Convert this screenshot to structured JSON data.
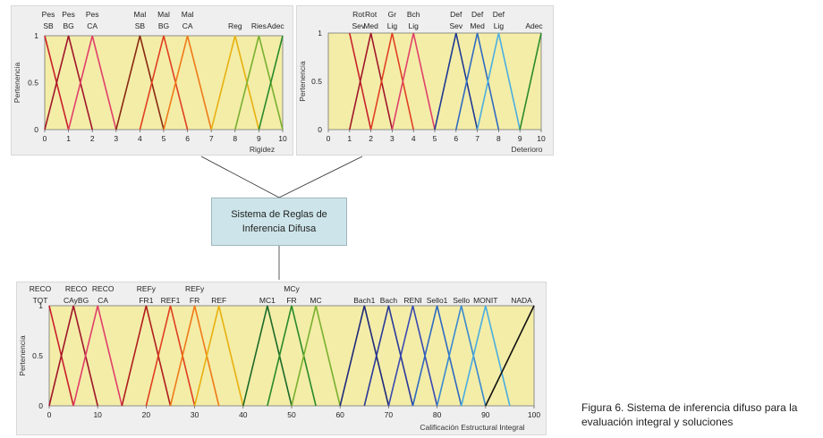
{
  "ylabel": "Pertenencia",
  "rules_box": "Sistema de Reglas de\nInferencia Difusa",
  "caption": "Figura 6. Sistema de inferencia difuso para la evaluación integral y soluciones",
  "chart_data": [
    {
      "type": "line",
      "id": "rigidez",
      "xlabel": "Rigidez",
      "ylabel": "Pertenencia",
      "xlim": [
        0,
        10
      ],
      "ylim": [
        0,
        1
      ],
      "xticks": [
        0,
        1,
        2,
        3,
        4,
        5,
        6,
        7,
        8,
        9,
        10
      ],
      "yticks": [
        0,
        0.5,
        1
      ],
      "series": [
        {
          "name": "Pes SB",
          "points": [
            [
              0,
              1
            ],
            [
              1,
              0
            ]
          ],
          "color": "#c8202b"
        },
        {
          "name": "Pes BG",
          "points": [
            [
              0,
              0
            ],
            [
              1,
              1
            ],
            [
              2,
              0
            ]
          ],
          "color": "#a0162a"
        },
        {
          "name": "Pes CA",
          "points": [
            [
              1,
              0
            ],
            [
              2,
              1
            ],
            [
              3,
              0
            ]
          ],
          "color": "#e0406a"
        },
        {
          "name": "Mal SB",
          "points": [
            [
              3,
              0
            ],
            [
              4,
              1
            ],
            [
              5,
              0
            ]
          ],
          "color": "#8a2a10"
        },
        {
          "name": "Mal BG",
          "points": [
            [
              4,
              0
            ],
            [
              5,
              1
            ],
            [
              6,
              0
            ]
          ],
          "color": "#e04020"
        },
        {
          "name": "Mal CA",
          "points": [
            [
              5,
              0
            ],
            [
              6,
              1
            ],
            [
              7,
              0
            ]
          ],
          "color": "#f07a18"
        },
        {
          "name": "Reg",
          "points": [
            [
              7,
              0
            ],
            [
              8,
              1
            ],
            [
              9,
              0
            ]
          ],
          "color": "#e8b010"
        },
        {
          "name": "Ries",
          "points": [
            [
              8,
              0
            ],
            [
              9,
              1
            ],
            [
              10,
              0
            ]
          ],
          "color": "#7ab030"
        },
        {
          "name": "Adec",
          "points": [
            [
              9,
              0
            ],
            [
              10,
              1
            ]
          ],
          "color": "#2a8a2a"
        }
      ]
    },
    {
      "type": "line",
      "id": "deterioro",
      "xlabel": "Deterioro",
      "ylabel": "Pertenencia",
      "xlim": [
        0,
        10
      ],
      "ylim": [
        0,
        1
      ],
      "xticks": [
        0,
        1,
        2,
        3,
        4,
        5,
        6,
        7,
        8,
        9,
        10
      ],
      "yticks": [
        0,
        0.5,
        1
      ],
      "series": [
        {
          "name": "Rot Sev",
          "points": [
            [
              1,
              1
            ],
            [
              2,
              0
            ]
          ],
          "color": "#c8202b"
        },
        {
          "name": "Rot Med",
          "points": [
            [
              1,
              0
            ],
            [
              2,
              1
            ],
            [
              3,
              0
            ]
          ],
          "color": "#a0162a"
        },
        {
          "name": "Gr Lig",
          "points": [
            [
              2,
              0
            ],
            [
              3,
              1
            ],
            [
              4,
              0
            ]
          ],
          "color": "#e04020"
        },
        {
          "name": "Bch Lig",
          "points": [
            [
              3,
              0
            ],
            [
              4,
              1
            ],
            [
              5,
              0
            ]
          ],
          "color": "#e0406a"
        },
        {
          "name": "Def Sev",
          "points": [
            [
              5,
              0
            ],
            [
              6,
              1
            ],
            [
              7,
              0
            ]
          ],
          "color": "#1f3a93"
        },
        {
          "name": "Def Med",
          "points": [
            [
              6,
              0
            ],
            [
              7,
              1
            ],
            [
              8,
              0
            ]
          ],
          "color": "#2f6ac0"
        },
        {
          "name": "Def Lig",
          "points": [
            [
              7,
              0
            ],
            [
              8,
              1
            ],
            [
              9,
              0
            ]
          ],
          "color": "#4aaee0"
        },
        {
          "name": "Adec",
          "points": [
            [
              9,
              0
            ],
            [
              10,
              1
            ]
          ],
          "color": "#2a8a2a"
        }
      ]
    },
    {
      "type": "line",
      "id": "calificacion",
      "xlabel": "Calificación Estructural Integral",
      "ylabel": "Pertenencia",
      "xlim": [
        0,
        100
      ],
      "ylim": [
        0,
        1
      ],
      "xticks": [
        0,
        10,
        20,
        30,
        40,
        50,
        60,
        70,
        80,
        90,
        100
      ],
      "yticks": [
        0,
        0.5,
        1
      ],
      "series": [
        {
          "name": "RECO TOT",
          "points": [
            [
              0,
              1
            ],
            [
              5,
              0
            ]
          ],
          "color": "#c8202b"
        },
        {
          "name": "RECO CAyBG",
          "points": [
            [
              0,
              0
            ],
            [
              5,
              1
            ],
            [
              10,
              0
            ]
          ],
          "color": "#a0162a"
        },
        {
          "name": "RECO CA",
          "points": [
            [
              5,
              0
            ],
            [
              10,
              1
            ],
            [
              15,
              0
            ]
          ],
          "color": "#e0406a"
        },
        {
          "name": "REFy FR1",
          "points": [
            [
              15,
              0
            ],
            [
              20,
              1
            ],
            [
              25,
              0
            ]
          ],
          "color": "#b01e1e"
        },
        {
          "name": "REF1",
          "points": [
            [
              20,
              0
            ],
            [
              25,
              1
            ],
            [
              30,
              0
            ]
          ],
          "color": "#e04020"
        },
        {
          "name": "REFy FR",
          "points": [
            [
              25,
              0
            ],
            [
              30,
              1
            ],
            [
              35,
              0
            ]
          ],
          "color": "#f07a18"
        },
        {
          "name": "REF",
          "points": [
            [
              30,
              0
            ],
            [
              35,
              1
            ],
            [
              40,
              0
            ]
          ],
          "color": "#e8b010"
        },
        {
          "name": "MC1",
          "points": [
            [
              40,
              0
            ],
            [
              45,
              1
            ],
            [
              50,
              0
            ]
          ],
          "color": "#1e6a2a"
        },
        {
          "name": "MCy FR",
          "points": [
            [
              45,
              0
            ],
            [
              50,
              1
            ],
            [
              55,
              0
            ]
          ],
          "color": "#2a8a2a"
        },
        {
          "name": "MC",
          "points": [
            [
              50,
              0
            ],
            [
              55,
              1
            ],
            [
              60,
              0
            ]
          ],
          "color": "#7ab030"
        },
        {
          "name": "Bach1",
          "points": [
            [
              60,
              0
            ],
            [
              65,
              1
            ],
            [
              70,
              0
            ]
          ],
          "color": "#1f2a7a"
        },
        {
          "name": "Bach",
          "points": [
            [
              65,
              0
            ],
            [
              70,
              1
            ],
            [
              75,
              0
            ]
          ],
          "color": "#2a3a9a"
        },
        {
          "name": "RENI",
          "points": [
            [
              70,
              0
            ],
            [
              75,
              1
            ],
            [
              80,
              0
            ]
          ],
          "color": "#3a4ab0"
        },
        {
          "name": "Sello1",
          "points": [
            [
              75,
              0
            ],
            [
              80,
              1
            ],
            [
              85,
              0
            ]
          ],
          "color": "#2f6ac0"
        },
        {
          "name": "Sello",
          "points": [
            [
              80,
              0
            ],
            [
              85,
              1
            ],
            [
              90,
              0
            ]
          ],
          "color": "#3a8ad0"
        },
        {
          "name": "MONIT",
          "points": [
            [
              85,
              0
            ],
            [
              90,
              1
            ],
            [
              95,
              0
            ]
          ],
          "color": "#4aaee0"
        },
        {
          "name": "NADA",
          "points": [
            [
              90,
              0
            ],
            [
              100,
              1
            ]
          ],
          "color": "#111111"
        }
      ]
    }
  ]
}
